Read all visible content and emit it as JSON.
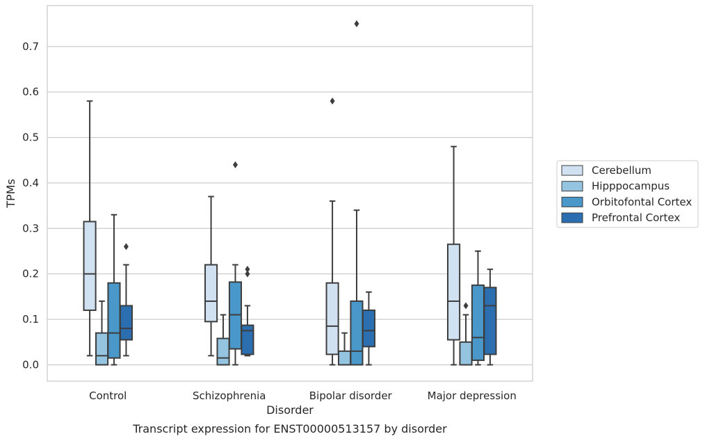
{
  "chart_data": {
    "type": "box",
    "title": "",
    "caption": "Transcript expression for ENST00000513157 by disorder",
    "xlabel": "Disorder",
    "ylabel": "TPMs",
    "ylim": [
      -0.036,
      0.79
    ],
    "yticks": [
      0.0,
      0.1,
      0.2,
      0.3,
      0.4,
      0.5,
      0.6,
      0.7
    ],
    "ytick_labels": [
      "0.0",
      "0.1",
      "0.2",
      "0.3",
      "0.4",
      "0.5",
      "0.6",
      "0.7"
    ],
    "grid": "horizontal",
    "legend_placement": "right",
    "categories": [
      "Control",
      "Schizophrenia",
      "Bipolar disorder",
      "Major depression"
    ],
    "series": [
      {
        "name": "Cerebellum",
        "color": "#d0e1f2",
        "boxes": [
          {
            "whislo": 0.02,
            "q1": 0.12,
            "med": 0.2,
            "q3": 0.315,
            "whishi": 0.58,
            "fliers": []
          },
          {
            "whislo": 0.02,
            "q1": 0.095,
            "med": 0.14,
            "q3": 0.22,
            "whishi": 0.37,
            "fliers": []
          },
          {
            "whislo": 0.0,
            "q1": 0.023,
            "med": 0.085,
            "q3": 0.18,
            "whishi": 0.36,
            "fliers": [
              0.58
            ]
          },
          {
            "whislo": 0.0,
            "q1": 0.055,
            "med": 0.14,
            "q3": 0.265,
            "whishi": 0.48,
            "fliers": []
          }
        ]
      },
      {
        "name": "Hipppocampus",
        "color": "#94c4df",
        "boxes": [
          {
            "whislo": 0.0,
            "q1": 0.0,
            "med": 0.02,
            "q3": 0.07,
            "whishi": 0.14,
            "fliers": []
          },
          {
            "whislo": 0.0,
            "q1": 0.0,
            "med": 0.015,
            "q3": 0.058,
            "whishi": 0.11,
            "fliers": []
          },
          {
            "whislo": 0.0,
            "q1": 0.0,
            "med": 0.0,
            "q3": 0.03,
            "whishi": 0.07,
            "fliers": []
          },
          {
            "whislo": 0.0,
            "q1": 0.0,
            "med": 0.0,
            "q3": 0.05,
            "whishi": 0.11,
            "fliers": [
              0.13
            ]
          }
        ]
      },
      {
        "name": "Orbitofontal Cortex",
        "color": "#4a98c9",
        "boxes": [
          {
            "whislo": 0.0,
            "q1": 0.015,
            "med": 0.07,
            "q3": 0.18,
            "whishi": 0.33,
            "fliers": []
          },
          {
            "whislo": 0.0,
            "q1": 0.035,
            "med": 0.11,
            "q3": 0.182,
            "whishi": 0.22,
            "fliers": [
              0.44
            ]
          },
          {
            "whislo": 0.0,
            "q1": 0.0,
            "med": 0.03,
            "q3": 0.14,
            "whishi": 0.34,
            "fliers": [
              0.75
            ]
          },
          {
            "whislo": 0.0,
            "q1": 0.01,
            "med": 0.06,
            "q3": 0.175,
            "whishi": 0.25,
            "fliers": []
          }
        ]
      },
      {
        "name": "Prefrontal Cortex",
        "color": "#2c6fb1",
        "boxes": [
          {
            "whislo": 0.02,
            "q1": 0.055,
            "med": 0.08,
            "q3": 0.13,
            "whishi": 0.22,
            "fliers": [
              0.26
            ]
          },
          {
            "whislo": 0.02,
            "q1": 0.023,
            "med": 0.075,
            "q3": 0.087,
            "whishi": 0.13,
            "fliers": [
              0.2,
              0.21
            ]
          },
          {
            "whislo": 0.0,
            "q1": 0.04,
            "med": 0.075,
            "q3": 0.12,
            "whishi": 0.16,
            "fliers": []
          },
          {
            "whislo": 0.0,
            "q1": 0.023,
            "med": 0.13,
            "q3": 0.17,
            "whishi": 0.21,
            "fliers": []
          }
        ]
      }
    ]
  }
}
